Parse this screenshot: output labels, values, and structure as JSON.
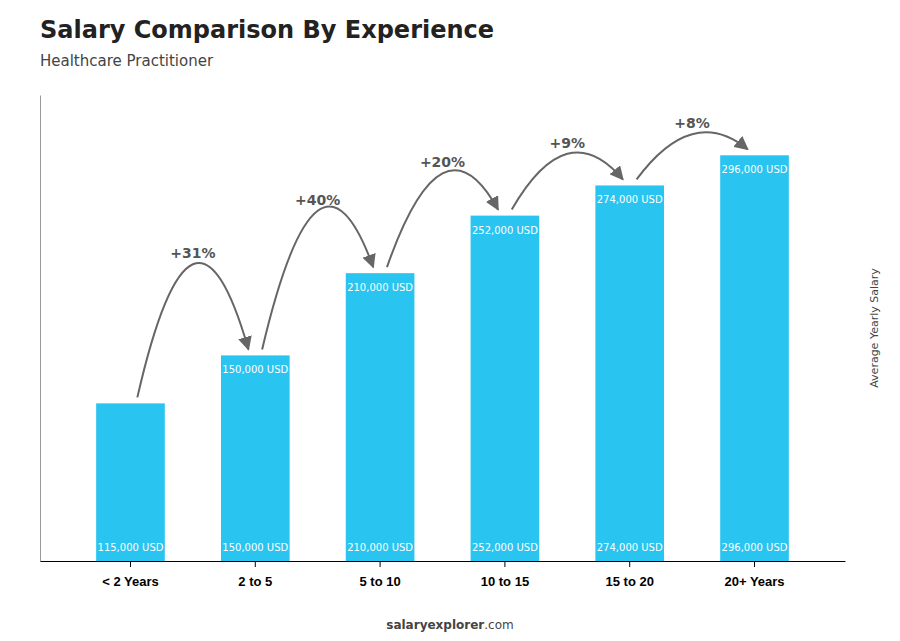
{
  "chart_data": {
    "type": "bar",
    "title": "Salary Comparison By Experience",
    "subtitle": "Healthcare Practitioner",
    "ylabel": "Average Yearly Salary",
    "categories": [
      "< 2 Years",
      "2 to 5",
      "5 to 10",
      "10 to 15",
      "15 to 20",
      "20+ Years"
    ],
    "values": [
      115000,
      150000,
      210000,
      252000,
      274000,
      296000
    ],
    "value_labels": [
      "115,000 USD",
      "150,000 USD",
      "210,000 USD",
      "252,000 USD",
      "274,000 USD",
      "296,000 USD"
    ],
    "data_labels": true,
    "color": "#29C4F0",
    "ylim": [
      0,
      340000
    ],
    "grid": false,
    "tick_labels": "x",
    "annotations": [
      {
        "text": "+31%"
      },
      {
        "text": "+40%"
      },
      {
        "text": "+20%"
      },
      {
        "text": "+9%"
      },
      {
        "text": "+8%"
      }
    ],
    "footer": [
      "salary",
      "explorer",
      ".com"
    ]
  }
}
